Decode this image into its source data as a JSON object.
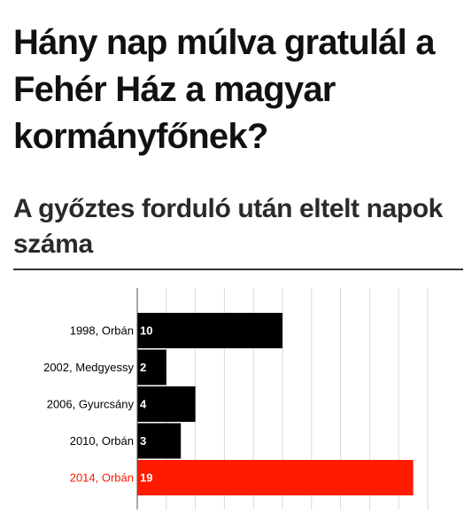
{
  "header": {
    "title": "Hány nap múlva gratulál a Fehér Ház a magyar kormányfőnek?",
    "subtitle": "A győztes forduló után eltelt napok száma"
  },
  "colors": {
    "default_bar": "#000000",
    "highlight_bar": "#ff1a00",
    "grid": "#d9d9d9",
    "axis": "#555555"
  },
  "chart_data": {
    "type": "bar",
    "orientation": "horizontal",
    "title": "Hány nap múlva gratulál a Fehér Ház a magyar kormányfőnek?",
    "subtitle": "A győztes forduló után eltelt napok száma",
    "categories": [
      "1998, Orbán",
      "2002, Medgyessy",
      "2006, Gyurcsány",
      "2010, Orbán",
      "2014, Orbán"
    ],
    "values": [
      10,
      2,
      4,
      3,
      19
    ],
    "highlight": [
      false,
      false,
      false,
      false,
      true
    ],
    "xlim": [
      0,
      20
    ],
    "grid": true,
    "data_labels": true
  }
}
